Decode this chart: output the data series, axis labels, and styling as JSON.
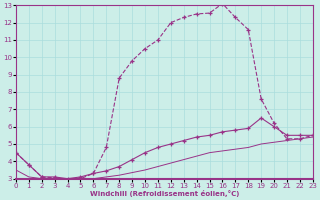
{
  "xlabel": "Windchill (Refroidissement éolien,°C)",
  "bg_color": "#cceee8",
  "line_color": "#993388",
  "grid_color": "#aadddd",
  "xlim": [
    0,
    23
  ],
  "ylim": [
    3,
    13
  ],
  "xticks": [
    0,
    1,
    2,
    3,
    4,
    5,
    6,
    7,
    8,
    9,
    10,
    11,
    12,
    13,
    14,
    15,
    16,
    17,
    18,
    19,
    20,
    21,
    22,
    23
  ],
  "yticks": [
    3,
    4,
    5,
    6,
    7,
    8,
    9,
    10,
    11,
    12,
    13
  ],
  "line1_x": [
    0,
    1,
    2,
    3,
    4,
    5,
    6,
    7,
    8,
    9,
    10,
    11,
    12,
    13,
    14,
    15,
    16,
    17,
    18,
    19,
    20,
    21,
    22,
    23
  ],
  "line1_y": [
    4.5,
    3.8,
    3.1,
    3.05,
    2.9,
    3.0,
    3.3,
    4.8,
    8.8,
    9.8,
    10.5,
    11.0,
    12.0,
    12.3,
    12.5,
    12.55,
    13.1,
    12.3,
    11.6,
    7.6,
    6.2,
    5.3,
    5.3,
    5.5
  ],
  "line2_x": [
    0,
    1,
    2,
    3,
    4,
    5,
    6,
    7,
    8,
    9,
    10,
    11,
    12,
    13,
    14,
    15,
    16,
    17,
    18,
    19,
    20,
    21,
    22,
    23
  ],
  "line2_y": [
    4.5,
    3.8,
    3.1,
    3.1,
    3.0,
    3.1,
    3.3,
    3.45,
    3.7,
    4.1,
    4.5,
    4.8,
    5.0,
    5.2,
    5.4,
    5.5,
    5.7,
    5.8,
    5.9,
    6.5,
    6.0,
    5.5,
    5.5,
    5.5
  ],
  "line3_x": [
    0,
    1,
    2,
    3,
    4,
    5,
    6,
    7,
    8,
    9,
    10,
    11,
    12,
    13,
    14,
    15,
    16,
    17,
    18,
    19,
    20,
    21,
    22,
    23
  ],
  "line3_y": [
    3.5,
    3.1,
    3.0,
    2.8,
    2.75,
    2.85,
    3.0,
    3.1,
    3.2,
    3.35,
    3.5,
    3.7,
    3.9,
    4.1,
    4.3,
    4.5,
    4.6,
    4.7,
    4.8,
    5.0,
    5.1,
    5.2,
    5.3,
    5.4
  ]
}
